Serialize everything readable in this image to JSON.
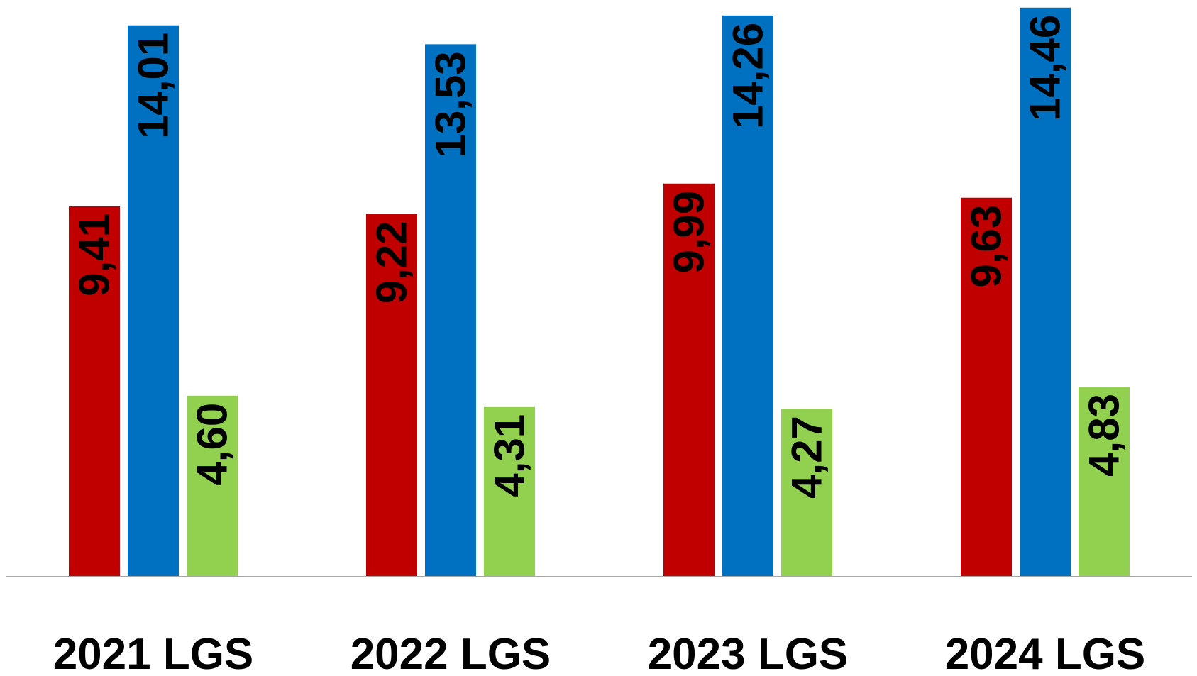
{
  "chart_data": {
    "type": "bar",
    "categories": [
      "2021 LGS",
      "2022 LGS",
      "2023 LGS",
      "2024 LGS"
    ],
    "series": [
      {
        "values": [
          9.41,
          9.22,
          9.99,
          9.63
        ],
        "labels": [
          "9,41",
          "9,22",
          "9,99",
          "9,63"
        ],
        "color": "#C00000"
      },
      {
        "values": [
          14.01,
          13.53,
          14.26,
          14.46
        ],
        "labels": [
          "14,01",
          "13,53",
          "14,26",
          "14,46"
        ],
        "color": "#0070C0"
      },
      {
        "values": [
          4.6,
          4.31,
          4.27,
          4.83
        ],
        "labels": [
          "4,60",
          "4,31",
          "4,27",
          "4,83"
        ],
        "color": "#92D050"
      }
    ],
    "ylim": [
      0,
      14.6
    ],
    "grid": false,
    "legend": "none",
    "axis_color": "#A6A6A6"
  }
}
